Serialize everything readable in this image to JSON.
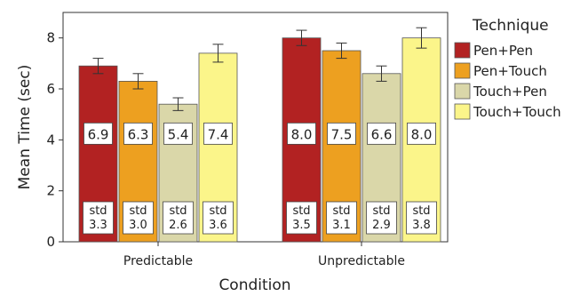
{
  "chart_data": {
    "type": "bar",
    "title": "",
    "xlabel": "Condition",
    "ylabel": "Mean Time (sec)",
    "ylim": [
      0,
      9
    ],
    "yticks": [
      0,
      2,
      4,
      6,
      8
    ],
    "grid": false,
    "legend_position": "right",
    "legend_title": "Technique",
    "std_prefix": "std",
    "categories": [
      "Predictable",
      "Unpredictable"
    ],
    "series": [
      {
        "name": "Pen+Pen",
        "color": "#b22222",
        "values": [
          6.9,
          8.0
        ],
        "error": [
          0.3,
          0.3
        ],
        "labels": [
          "6.9",
          "8.0"
        ],
        "std": [
          "3.3",
          "3.5"
        ]
      },
      {
        "name": "Pen+Touch",
        "color": "#eda020",
        "values": [
          6.3,
          7.5
        ],
        "error": [
          0.3,
          0.3
        ],
        "labels": [
          "6.3",
          "7.5"
        ],
        "std": [
          "3.0",
          "3.1"
        ]
      },
      {
        "name": "Touch+Pen",
        "color": "#dad7a9",
        "values": [
          5.4,
          6.6
        ],
        "error": [
          0.25,
          0.3
        ],
        "labels": [
          "5.4",
          "6.6"
        ],
        "std": [
          "2.6",
          "2.9"
        ]
      },
      {
        "name": "Touch+Touch",
        "color": "#fbf58a",
        "values": [
          7.4,
          8.0
        ],
        "error": [
          0.35,
          0.4
        ],
        "labels": [
          "7.4",
          "8.0"
        ],
        "std": [
          "3.6",
          "3.8"
        ]
      }
    ]
  }
}
